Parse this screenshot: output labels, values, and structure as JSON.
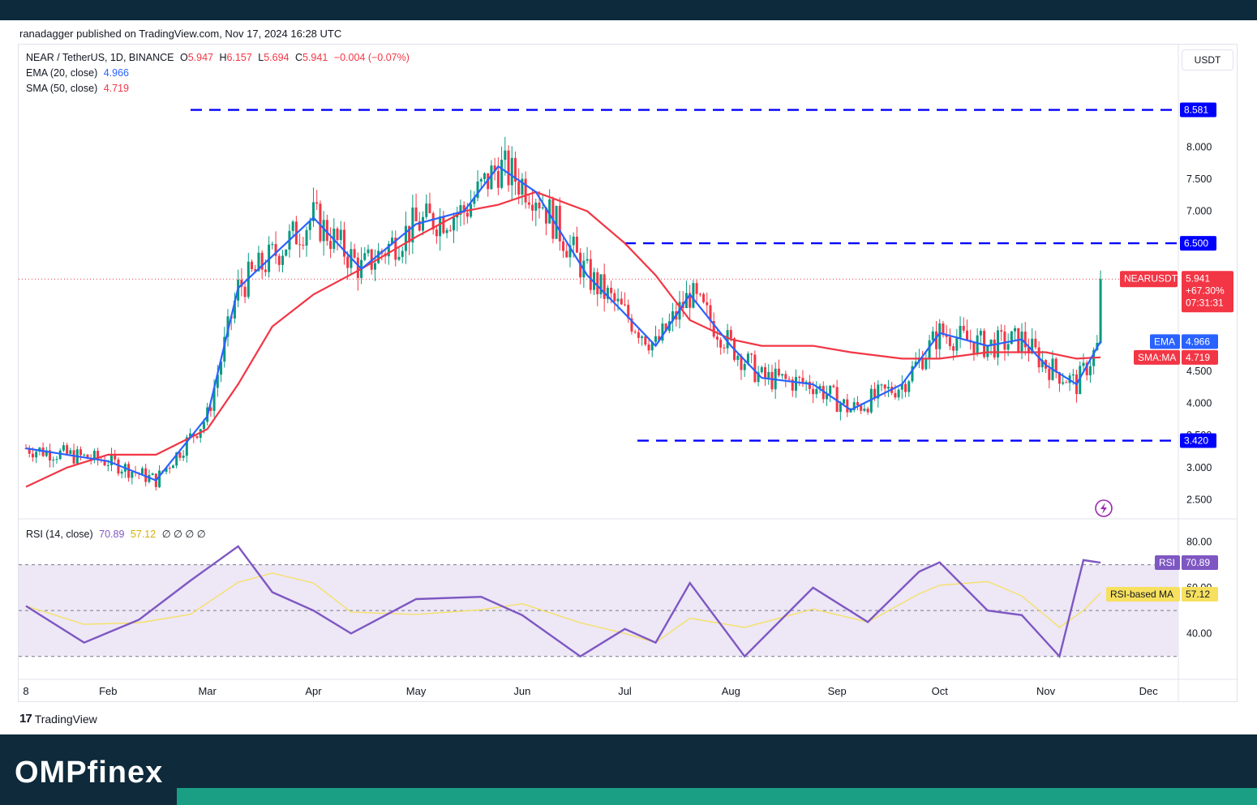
{
  "header": {
    "published": "ranadagger published on TradingView.com, Nov 17, 2024 16:28 UTC"
  },
  "legend": {
    "symbol": "NEAR / TetherUS, 1D, BINANCE",
    "o_label": "O",
    "o": "5.947",
    "h_label": "H",
    "h": "6.157",
    "l_label": "L",
    "l": "5.694",
    "c_label": "C",
    "c": "5.941",
    "change": "−0.004 (−0.07%)",
    "ema_label": "EMA (20, close)",
    "ema_value": "4.966",
    "sma_label": "SMA (50, close)",
    "sma_value": "4.719",
    "rsi_label": "RSI (14, close)",
    "rsi_value": "70.89",
    "rsi_ma_value": "57.12",
    "rsi_extra": "∅ ∅ ∅ ∅"
  },
  "currency": "USDT",
  "price_tags": {
    "near": {
      "label": "NEARUSDT",
      "price": "5.941",
      "change": "+67.30%",
      "countdown": "07:31:31"
    },
    "ema": {
      "label": "EMA",
      "value": "4.966"
    },
    "sma": {
      "label": "SMA:MA",
      "value": "4.719"
    },
    "lvl1": "8.581",
    "lvl2": "6.500",
    "lvl3": "3.420",
    "rsi": {
      "label": "RSI",
      "value": "70.89"
    },
    "rsi_ma": {
      "label": "RSI-based MA",
      "value": "57.12"
    }
  },
  "footer": {
    "tradingview": "TradingView",
    "brand": "OMPfinex"
  },
  "colors": {
    "up": "#089981",
    "down": "#f23645",
    "ema": "#2962ff",
    "sma": "#f23645",
    "level": "#0000ff",
    "rsi": "#7e57c2",
    "rsi_ma": "#f6e05e",
    "band": "#ede7f6"
  },
  "chart_data": {
    "type": "line",
    "symbol": "NEAR / TetherUS",
    "x_ticks": [
      "8",
      "Feb",
      "Mar",
      "Apr",
      "May",
      "Jun",
      "Jul",
      "Aug",
      "Sep",
      "Oct",
      "Nov",
      "Dec"
    ],
    "y_ticks": [
      2.5,
      3.0,
      3.5,
      4.0,
      4.5,
      5.0,
      5.5,
      6.0,
      6.5,
      7.0,
      7.5,
      8.0
    ],
    "ylim": [
      2.2,
      9.6
    ],
    "series": [
      {
        "name": "EMA",
        "x": [
          "2024-01-08",
          "2024-01-20",
          "2024-02-01",
          "2024-02-15",
          "2024-03-01",
          "2024-03-10",
          "2024-03-20",
          "2024-04-01",
          "2024-04-15",
          "2024-05-01",
          "2024-05-15",
          "2024-05-25",
          "2024-06-05",
          "2024-06-20",
          "2024-07-01",
          "2024-07-10",
          "2024-07-20",
          "2024-08-01",
          "2024-08-10",
          "2024-08-25",
          "2024-09-05",
          "2024-09-20",
          "2024-10-01",
          "2024-10-15",
          "2024-10-25",
          "2024-11-01",
          "2024-11-10",
          "2024-11-17"
        ],
        "values": [
          3.3,
          3.2,
          3.1,
          2.8,
          3.8,
          5.8,
          6.3,
          6.9,
          6.1,
          6.8,
          7.0,
          7.7,
          7.3,
          6.0,
          5.4,
          4.9,
          5.7,
          4.9,
          4.4,
          4.3,
          3.9,
          4.3,
          5.1,
          4.9,
          5.0,
          4.6,
          4.3,
          4.97
        ]
      },
      {
        "name": "SMA",
        "x": [
          "2024-01-08",
          "2024-01-20",
          "2024-02-01",
          "2024-02-15",
          "2024-03-01",
          "2024-03-10",
          "2024-03-20",
          "2024-04-01",
          "2024-04-15",
          "2024-05-01",
          "2024-05-15",
          "2024-05-25",
          "2024-06-05",
          "2024-06-20",
          "2024-07-01",
          "2024-07-10",
          "2024-07-20",
          "2024-08-01",
          "2024-08-10",
          "2024-08-25",
          "2024-09-05",
          "2024-09-20",
          "2024-10-01",
          "2024-10-15",
          "2024-10-25",
          "2024-11-01",
          "2024-11-10",
          "2024-11-17"
        ],
        "values": [
          2.7,
          3.0,
          3.2,
          3.2,
          3.6,
          4.3,
          5.2,
          5.7,
          6.1,
          6.6,
          7.0,
          7.1,
          7.3,
          7.0,
          6.5,
          6.0,
          5.3,
          5.0,
          4.9,
          4.9,
          4.8,
          4.7,
          4.7,
          4.8,
          4.8,
          4.8,
          4.7,
          4.72
        ]
      },
      {
        "name": "RSI",
        "x": [
          "2024-01-08",
          "2024-01-25",
          "2024-02-10",
          "2024-02-25",
          "2024-03-10",
          "2024-03-20",
          "2024-04-01",
          "2024-04-12",
          "2024-05-01",
          "2024-05-20",
          "2024-06-01",
          "2024-06-18",
          "2024-07-01",
          "2024-07-10",
          "2024-07-20",
          "2024-08-05",
          "2024-08-25",
          "2024-09-10",
          "2024-09-25",
          "2024-10-01",
          "2024-10-15",
          "2024-10-25",
          "2024-11-05",
          "2024-11-12",
          "2024-11-17"
        ],
        "values": [
          52,
          36,
          46,
          63,
          78,
          58,
          50,
          40,
          55,
          56,
          48,
          30,
          42,
          36,
          62,
          30,
          60,
          45,
          67,
          71,
          50,
          48,
          30,
          72,
          70.89
        ]
      }
    ],
    "levels": [
      8.581,
      6.5,
      3.42
    ],
    "rsi_levels": [
      70,
      50,
      30
    ],
    "rsi_y_ticks": [
      40,
      60,
      80
    ],
    "rsi_ylim": [
      20,
      90
    ]
  }
}
